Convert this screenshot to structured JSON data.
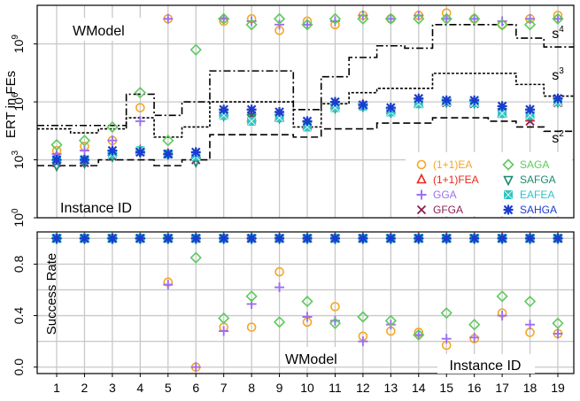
{
  "chart_data": [
    {
      "type": "scatter",
      "panel": "top",
      "ylabel": "ERT in FEs",
      "y_scale": "log10",
      "ylim": [
        1,
        100000000000.0
      ],
      "yticks": [
        {
          "value": 1,
          "base": "10",
          "exp": "0"
        },
        {
          "value": 1000,
          "base": "10",
          "exp": "3"
        },
        {
          "value": 1000000,
          "base": "10",
          "exp": "6"
        },
        {
          "value": 1000000000,
          "base": "10",
          "exp": "9"
        }
      ],
      "x": [
        1,
        2,
        3,
        4,
        5,
        6,
        7,
        8,
        9,
        10,
        11,
        12,
        13,
        14,
        15,
        16,
        17,
        18,
        19
      ],
      "grid": true,
      "annotations": {
        "top_left": "WModel",
        "bottom_left": "Instance ID"
      },
      "legend_placement": "bottom-right",
      "series": [
        {
          "name": "(1+1)EA",
          "color": "#f5a623",
          "marker": "circle",
          "values": [
            3000,
            5000,
            10000,
            500000,
            20000000000.0,
            null,
            15000000000.0,
            20000000000.0,
            5000000000.0,
            15000000000.0,
            10000000000.0,
            30000000000.0,
            20000000000.0,
            30000000000.0,
            40000000000.0,
            20000000000.0,
            10000000000.0,
            20000000000.0,
            30000000000.0
          ]
        },
        {
          "name": "(1+1)FEA",
          "color": "#e8281e",
          "marker": "triangle",
          "values": [
            1500,
            1000,
            2500,
            3000,
            2000,
            2000,
            300000,
            150000,
            150000,
            60000,
            700000,
            700000,
            400000,
            800000,
            1000000,
            900000,
            250000,
            150000,
            1000000
          ]
        },
        {
          "name": "GGA",
          "color": "#9b6ef3",
          "marker": "plus",
          "values": [
            2000,
            3000,
            10000,
            100000,
            20000000000.0,
            null,
            20000000000.0,
            15000000000.0,
            10000000000.0,
            10000000000.0,
            15000000000.0,
            30000000000.0,
            20000000000.0,
            30000000000.0,
            20000000000.0,
            20000000000.0,
            15000000000.0,
            20000000000.0,
            20000000000.0
          ]
        },
        {
          "name": "GFGA",
          "color": "#8b2252",
          "marker": "x",
          "values": [
            700,
            700,
            1500,
            2500,
            2000,
            1000,
            250000,
            200000,
            200000,
            60000,
            500000,
            600000,
            300000,
            800000,
            900000,
            800000,
            300000,
            100000,
            900000
          ]
        },
        {
          "name": "SAGA",
          "color": "#5ec95e",
          "marker": "diamond",
          "values": [
            6000,
            10000,
            50000,
            3000000,
            10000,
            500000000.0,
            20000000000.0,
            10000000000.0,
            20000000000.0,
            10000000000.0,
            20000000000.0,
            20000000000.0,
            20000000000.0,
            20000000000.0,
            20000000000.0,
            20000000000.0,
            10000000000.0,
            10000000000.0,
            20000000000.0
          ]
        },
        {
          "name": "SAFGA",
          "color": "#1d8a6e",
          "marker": "triangle-down",
          "values": [
            500,
            700,
            1500,
            2500,
            2000,
            800,
            200000,
            150000,
            150000,
            60000,
            500000,
            600000,
            300000,
            900000,
            1000000,
            900000,
            300000,
            200000,
            1000000
          ]
        },
        {
          "name": "EAFEA",
          "color": "#2ec4c4",
          "marker": "square-x",
          "values": [
            1000,
            1000,
            2000,
            3000,
            2000,
            1500,
            200000,
            100000,
            150000,
            50000,
            500000,
            600000,
            300000,
            800000,
            1000000,
            900000,
            250000,
            200000,
            1000000
          ]
        },
        {
          "name": "SAHGA",
          "color": "#1a3ccf",
          "marker": "asterisk",
          "values": [
            1000,
            1000,
            3000,
            2500,
            2000,
            2500,
            400000,
            400000,
            300000,
            100000,
            1000000,
            700000,
            500000,
            1500000,
            1200000,
            1200000,
            600000,
            400000,
            1500000
          ]
        }
      ],
      "reference_curves": [
        {
          "name": "s",
          "exp": "4",
          "style": "dashdot",
          "steps": [
            [
              0.5,
              60000
            ],
            [
              1.5,
              60000
            ],
            [
              2.5,
              60000
            ],
            [
              3.5,
              2500000
            ],
            [
              4.5,
              200000
            ],
            [
              5.5,
              1000000
            ],
            [
              6.5,
              40000000.0
            ],
            [
              9.5,
              400000.0
            ],
            [
              10.5,
              20000000.0
            ],
            [
              11.5,
              200000000.0
            ],
            [
              12.5,
              800000000.0
            ],
            [
              13.5,
              600000000.0
            ],
            [
              14.5,
              10000000000.0
            ],
            [
              16.5,
              10000000000.0
            ],
            [
              17.5,
              2000000000.0
            ],
            [
              18.5,
              700000000.0
            ],
            [
              19.5,
              700000000.0
            ]
          ]
        },
        {
          "name": "s",
          "exp": "3",
          "style": "dotted",
          "steps": [
            [
              0.5,
              40000
            ],
            [
              1.5,
              25000
            ],
            [
              2.5,
              40000
            ],
            [
              3.5,
              150000
            ],
            [
              4.5,
              15000
            ],
            [
              5.5,
              50000
            ],
            [
              6.5,
              1000000
            ],
            [
              9.5,
              50000
            ],
            [
              10.5,
              800000
            ],
            [
              11.5,
              3000000
            ],
            [
              12.5,
              5000000
            ],
            [
              13.5,
              5000000
            ],
            [
              14.5,
              30000000
            ],
            [
              16.5,
              30000000
            ],
            [
              17.5,
              8000000
            ],
            [
              18.5,
              2000000
            ],
            [
              19.5,
              2000000
            ]
          ]
        },
        {
          "name": "s",
          "exp": "2",
          "style": "dashed",
          "steps": [
            [
              0.5,
              500
            ],
            [
              1.5,
              500
            ],
            [
              2.5,
              1000
            ],
            [
              3.5,
              1000
            ],
            [
              4.5,
              500
            ],
            [
              5.5,
              1000
            ],
            [
              6.5,
              20000
            ],
            [
              9.5,
              15000
            ],
            [
              10.5,
              40000
            ],
            [
              11.5,
              40000
            ],
            [
              12.5,
              80000
            ],
            [
              13.5,
              80000
            ],
            [
              14.5,
              150000
            ],
            [
              16.5,
              100000
            ],
            [
              17.5,
              50000
            ],
            [
              18.5,
              30000
            ],
            [
              19.5,
              30000
            ]
          ]
        }
      ]
    },
    {
      "type": "scatter",
      "panel": "bottom",
      "ylabel": "Success Rate",
      "ylim": [
        -0.05,
        1.05
      ],
      "yticks": [
        "0.0",
        "0.4",
        "0.8"
      ],
      "x": [
        1,
        2,
        3,
        4,
        5,
        6,
        7,
        8,
        9,
        10,
        11,
        12,
        13,
        14,
        15,
        16,
        17,
        18,
        19
      ],
      "xticks": [
        "1",
        "2",
        "3",
        "4",
        "5",
        "6",
        "7",
        "8",
        "9",
        "10",
        "11",
        "12",
        "13",
        "14",
        "15",
        "16",
        "17",
        "18",
        "19"
      ],
      "grid": true,
      "annotations": {
        "bottom_center": "WModel",
        "bottom_right": "Instance ID"
      },
      "series": [
        {
          "name": "(1+1)EA",
          "values": [
            1,
            1,
            1,
            1,
            0.66,
            0.0,
            0.31,
            0.31,
            0.74,
            0.35,
            0.47,
            0.24,
            0.28,
            0.27,
            0.17,
            0.22,
            0.42,
            0.27,
            0.26
          ]
        },
        {
          "name": "(1+1)FEA",
          "values": [
            1,
            1,
            1,
            1,
            1,
            1,
            1,
            1,
            1,
            1,
            1,
            1,
            1,
            1,
            1,
            1,
            1,
            1,
            1
          ]
        },
        {
          "name": "GGA",
          "values": [
            1,
            1,
            1,
            1,
            0.64,
            0.0,
            0.28,
            0.49,
            0.62,
            0.39,
            0.36,
            0.2,
            0.33,
            0.25,
            0.22,
            0.23,
            0.4,
            0.33,
            0.26
          ]
        },
        {
          "name": "GFGA",
          "values": [
            1,
            1,
            1,
            1,
            1,
            1,
            1,
            1,
            1,
            1,
            1,
            1,
            1,
            1,
            1,
            1,
            1,
            1,
            1
          ]
        },
        {
          "name": "SAGA",
          "values": [
            1,
            1,
            1,
            1,
            1,
            0.85,
            0.38,
            0.55,
            0.35,
            0.51,
            0.34,
            0.39,
            0.36,
            0.25,
            0.42,
            0.33,
            0.55,
            0.51,
            0.34
          ]
        },
        {
          "name": "SAFGA",
          "values": [
            1,
            1,
            1,
            1,
            1,
            1,
            1,
            1,
            1,
            1,
            1,
            1,
            1,
            1,
            1,
            1,
            1,
            1,
            1
          ]
        },
        {
          "name": "EAFEA",
          "values": [
            1,
            1,
            1,
            1,
            1,
            1,
            1,
            1,
            1,
            1,
            1,
            1,
            1,
            1,
            1,
            1,
            1,
            1,
            1
          ]
        },
        {
          "name": "SAHGA",
          "values": [
            1,
            1,
            1,
            1,
            1,
            1,
            1,
            1,
            1,
            1,
            1,
            1,
            1,
            1,
            1,
            1,
            1,
            1,
            1
          ]
        }
      ]
    }
  ]
}
